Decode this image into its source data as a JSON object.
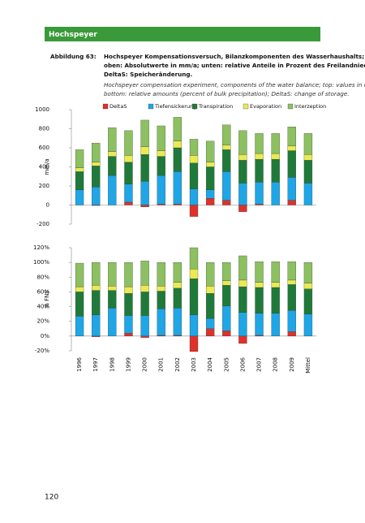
{
  "header": {
    "title": "Hochspeyer"
  },
  "caption": {
    "label": "Abbildung 63:",
    "lines": [
      "Hochspeyer Kompensationsversuch, Bilanzkomponenten des Wasserhaushalts;",
      "oben: Absolutwerte in mm/a; unten: relative Anteile in Prozent des Freilandniederschlags;",
      "DeltaS: Speicheränderung."
    ],
    "english": [
      "Hochspeyer compensation experiment, components of the water balance; top: values in mm/a;",
      "bottom: relative amounts (percent of bulk precipitation); DeltaS: change of storage."
    ]
  },
  "page_number": "120",
  "chart_data": [
    {
      "type": "stacked_bar",
      "y_label": "mm/a",
      "legend": "top",
      "ylim": [
        -200,
        1000
      ],
      "yticks": [
        -200,
        0,
        200,
        400,
        600,
        800,
        1000
      ],
      "series": [
        {
          "name": "DeltaS",
          "color": "#e0302a",
          "values": [
            0,
            -5,
            0,
            30,
            -20,
            10,
            10,
            -120,
            70,
            50,
            -70,
            10,
            0,
            50,
            0
          ]
        },
        {
          "name": "Tiefensickerung",
          "color": "#1ea6e6",
          "values": [
            160,
            190,
            310,
            190,
            250,
            300,
            340,
            170,
            90,
            300,
            230,
            230,
            240,
            240,
            230
          ]
        },
        {
          "name": "Transpiration",
          "color": "#1f7a3a",
          "values": [
            190,
            220,
            200,
            230,
            280,
            200,
            250,
            270,
            240,
            230,
            240,
            240,
            240,
            280,
            240
          ]
        },
        {
          "name": "Evaporation",
          "color": "#eaea55",
          "values": [
            40,
            40,
            50,
            70,
            80,
            60,
            70,
            80,
            50,
            50,
            60,
            60,
            60,
            50,
            60
          ]
        },
        {
          "name": "Interzeption",
          "color": "#8cc060",
          "values": [
            190,
            200,
            250,
            260,
            280,
            260,
            250,
            170,
            220,
            210,
            250,
            210,
            210,
            200,
            220
          ]
        }
      ]
    },
    {
      "type": "stacked_bar",
      "y_label": "% FNS",
      "ylim": [
        -20,
        120
      ],
      "yticks": [
        {
          "value": -20,
          "label": "-20%"
        },
        {
          "value": 0,
          "label": "0%"
        },
        {
          "value": 20,
          "label": "20%"
        },
        {
          "value": 40,
          "label": "40%"
        },
        {
          "value": 60,
          "label": "60%"
        },
        {
          "value": 80,
          "label": "80%"
        },
        {
          "value": 100,
          "label": "100%"
        },
        {
          "value": 120,
          "label": "120%"
        }
      ],
      "categories": [
        "1996",
        "1997",
        "1998",
        "1999",
        "2000",
        "2001",
        "2002",
        "2003",
        "2004",
        "2005",
        "2006",
        "2007",
        "2008",
        "2009",
        "Mittel"
      ],
      "series": [
        {
          "color": "#e0302a",
          "values": [
            0,
            -1,
            0,
            4,
            -2,
            1,
            1,
            -21,
            10,
            7,
            -10,
            1,
            0,
            6,
            0
          ]
        },
        {
          "color": "#1ea6e6",
          "values": [
            27,
            29,
            38,
            24,
            28,
            36,
            37,
            29,
            14,
            34,
            32,
            30,
            31,
            29,
            30
          ]
        },
        {
          "color": "#1f7a3a",
          "values": [
            33,
            33,
            24,
            30,
            32,
            24,
            27,
            49,
            34,
            28,
            35,
            35,
            35,
            35,
            34
          ]
        },
        {
          "color": "#eaea55",
          "values": [
            7,
            7,
            6,
            9,
            9,
            7,
            8,
            13,
            10,
            6,
            9,
            7,
            7,
            6,
            8
          ]
        },
        {
          "color": "#8cc060",
          "values": [
            32,
            31,
            32,
            33,
            33,
            32,
            27,
            29,
            32,
            25,
            33,
            28,
            28,
            25,
            28
          ]
        }
      ]
    }
  ]
}
